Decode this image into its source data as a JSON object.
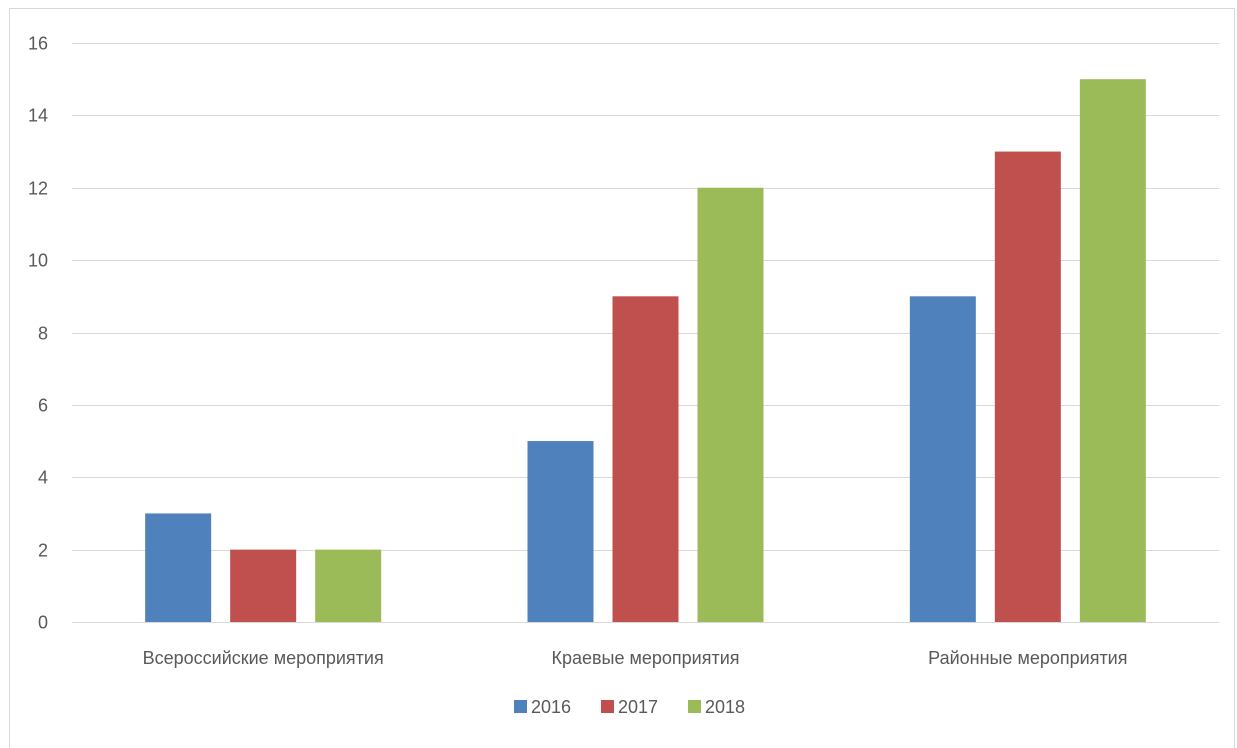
{
  "chart_data": {
    "type": "bar",
    "categories": [
      "Всероссийские мероприятия",
      "Краевые мероприятия",
      "Районные мероприятия"
    ],
    "series": [
      {
        "name": "2016",
        "values": [
          3,
          5,
          9
        ],
        "color": "#4f81bd"
      },
      {
        "name": "2017",
        "values": [
          2,
          9,
          13
        ],
        "color": "#c0504d"
      },
      {
        "name": "2018",
        "values": [
          2,
          12,
          15
        ],
        "color": "#9bbb59"
      }
    ],
    "ylim": [
      0,
      16
    ],
    "y_ticks": [
      0,
      2,
      4,
      6,
      8,
      10,
      12,
      14,
      16
    ],
    "grid": true,
    "legend": "bottom"
  },
  "colors": {
    "grid": "#d9d9d9",
    "text": "#595959"
  }
}
